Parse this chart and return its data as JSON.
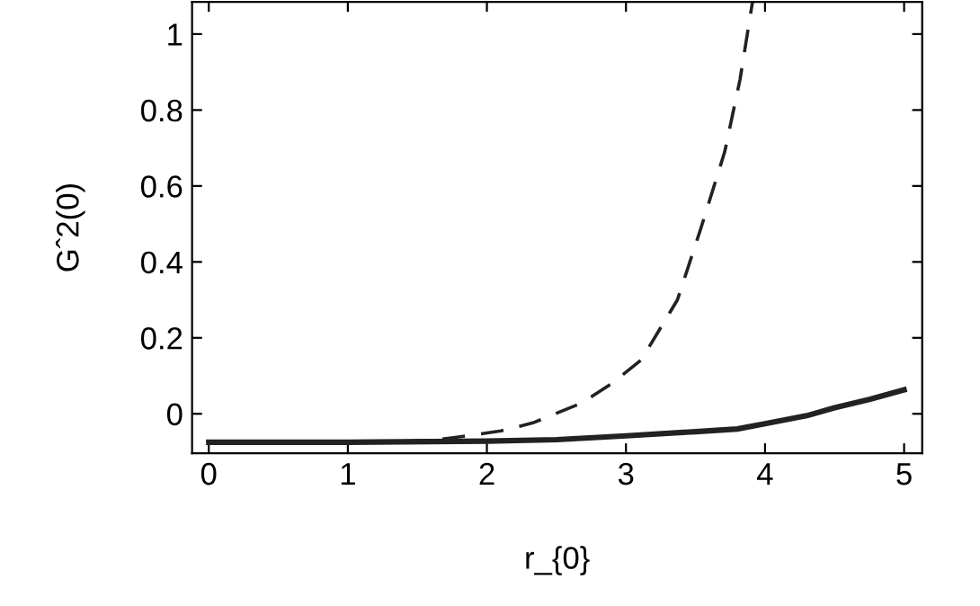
{
  "chart_data": {
    "type": "line",
    "xlabel": "r_{0}",
    "ylabel": "Gˆ2(0)",
    "series": [
      {
        "x": [
          0,
          1.2,
          1.6,
          1.86,
          2.1,
          2.33,
          2.68,
          2.9,
          3.11,
          3.37,
          3.54,
          3.71,
          3.82,
          3.91
        ],
        "values": [
          -0.075,
          -0.075,
          -0.07,
          -0.058,
          -0.045,
          -0.024,
          0.028,
          0.08,
          0.142,
          0.3,
          0.49,
          0.69,
          0.88,
          1.085
        ],
        "color": "#222222",
        "line_style": "dashed"
      },
      {
        "x": [
          0,
          1,
          2,
          2.5,
          3,
          3.5,
          3.8,
          4,
          4.3,
          4.5,
          4.75,
          5
        ],
        "values": [
          -0.075,
          -0.075,
          -0.072,
          -0.068,
          -0.058,
          -0.047,
          -0.04,
          -0.026,
          -0.005,
          0.016,
          0.038,
          0.063
        ],
        "color": "#222222",
        "line_style": "solid"
      }
    ],
    "xlim": [
      -0.12,
      5.13
    ],
    "ylim": [
      -0.104,
      1.085
    ],
    "xticks": [
      0,
      1,
      2,
      3,
      4,
      5
    ],
    "yticks": [
      0,
      0.2,
      0.4,
      0.6,
      0.8,
      1
    ],
    "grid": false,
    "legend": false,
    "marker": "none"
  }
}
